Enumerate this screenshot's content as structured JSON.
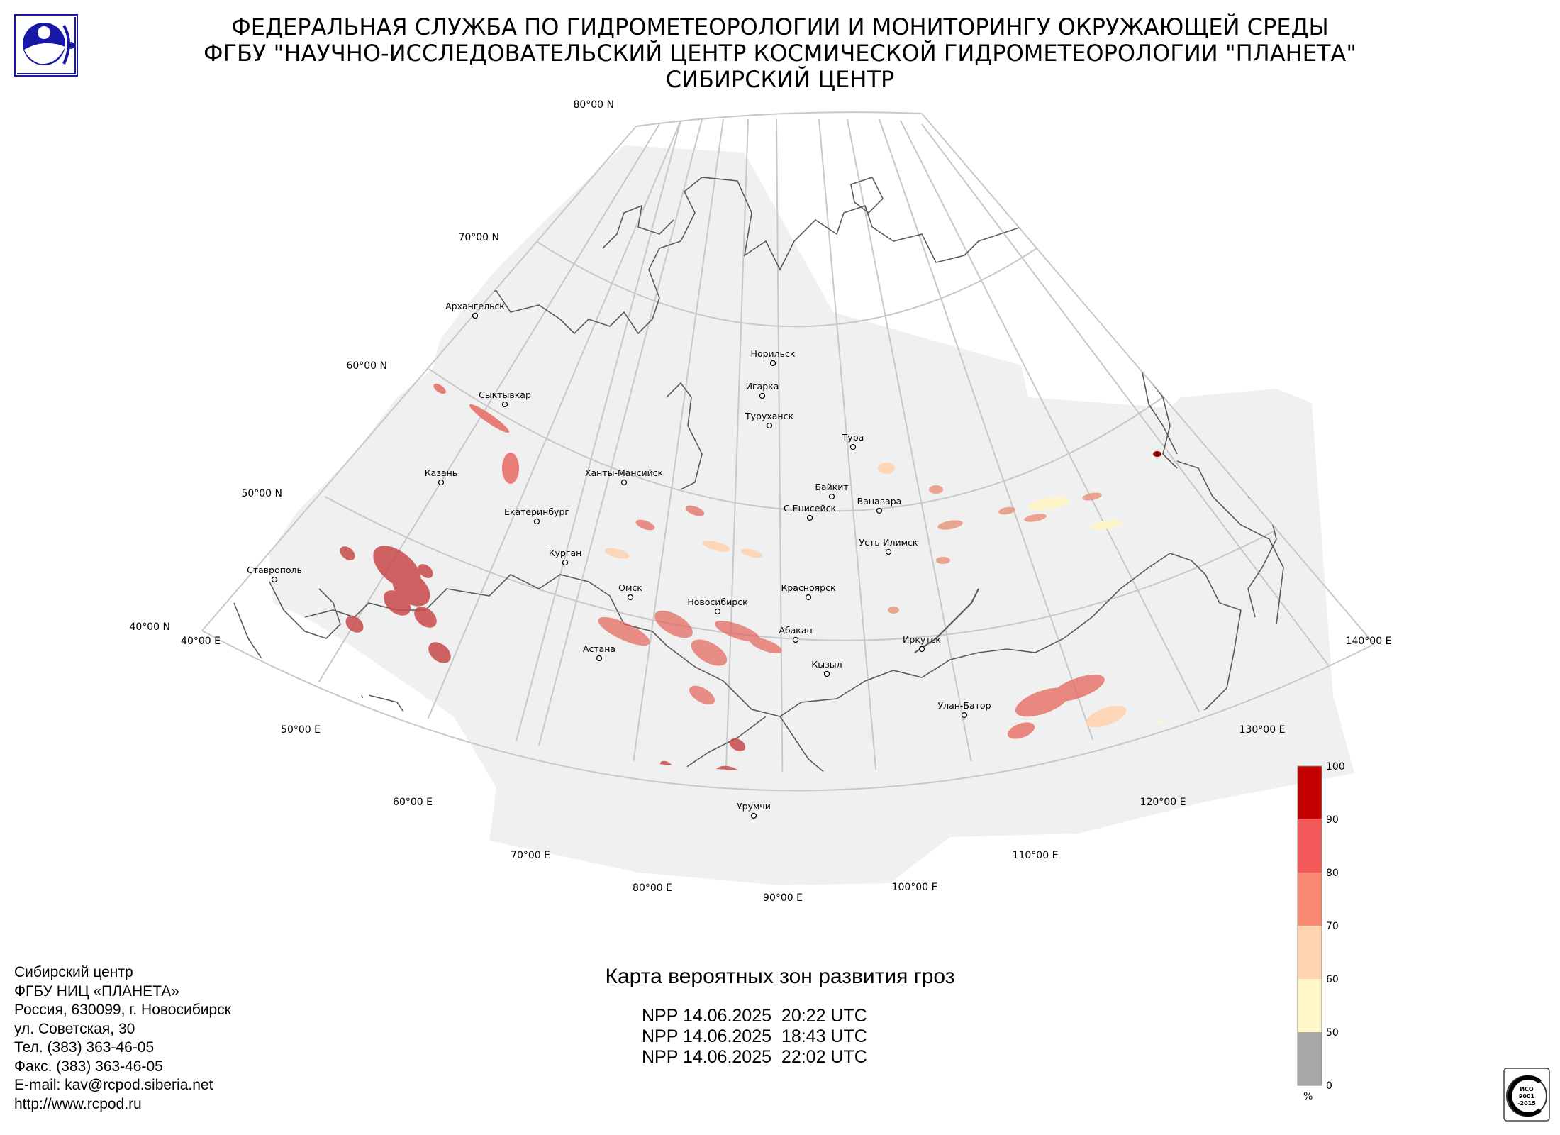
{
  "header": {
    "line1": "ФЕДЕРАЛЬНАЯ СЛУЖБА ПО ГИДРОМЕТЕОРОЛОГИИ И МОНИТОРИНГУ ОКРУЖАЮЩЕЙ СРЕДЫ",
    "line2": "ФГБУ \"НАУЧНО-ИССЛЕДОВАТЕЛЬСКИЙ ЦЕНТР КОСМИЧЕСКОЙ ГИДРОМЕТЕОРОЛОГИИ \"ПЛАНЕТА\"",
    "line3": "СИБИРСКИЙ ЦЕНТР"
  },
  "logo": {
    "icon": "planeta-globe-logo-icon"
  },
  "map": {
    "latitude_labels": [
      "80°00 N",
      "70°00 N",
      "60°00 N",
      "50°00 N",
      "40°00 N"
    ],
    "longitude_labels": [
      "40°00 E",
      "50°00 E",
      "60°00 E",
      "70°00 E",
      "80°00 E",
      "90°00 E",
      "100°00 E",
      "110°00 E",
      "120°00 E",
      "130°00 E",
      "140°00 E"
    ],
    "cities": [
      "Архангельск",
      "Норильск",
      "Игарка",
      "Туруханск",
      "Сыктывкар",
      "Тура",
      "Казань",
      "Ханты-Мансийск",
      "Байкит",
      "Ванавара",
      "Екатеринбург",
      "С.Енисейск",
      "Курган",
      "Усть-Илимск",
      "Ставрополь",
      "Омск",
      "Красноярск",
      "Новосибирск",
      "Абакан",
      "Иркутск",
      "Астана",
      "Кызыл",
      "Улан-Батор",
      "Урумчи"
    ],
    "colors": {
      "coverage": "#f0f0f0",
      "grid": "#c8c8c8",
      "border": "#5a5a5a"
    }
  },
  "legend": {
    "unit": "%",
    "ticks": [
      "100",
      "90",
      "80",
      "70",
      "60",
      "50",
      "0"
    ],
    "colors": [
      "#c40000",
      "#f45a5a",
      "#fb8a72",
      "#fdd3b0",
      "#fef6c6",
      "#a8a8a8"
    ]
  },
  "caption": {
    "title": "Карта вероятных зон развития гроз",
    "passes": [
      "NPP 14.06.2025  20:22 UTC",
      "NPP 14.06.2025  18:43 UTC",
      "NPP 14.06.2025  22:02 UTC"
    ]
  },
  "contacts": [
    "Сибирский центр",
    "ФГБУ НИЦ «ПЛАНЕТА»",
    "Россия, 630099, г. Новосибирск",
    "ул. Советская, 30",
    "Тел. (383) 363-46-05",
    "Факс. (383) 363-46-05",
    "E-mail: kav@rcpod.siberia.net",
    "http://www.rcpod.ru"
  ],
  "iso_badge": {
    "icon": "iso-certification-icon",
    "text": [
      "ИСО",
      "9001",
      "-2015"
    ]
  }
}
